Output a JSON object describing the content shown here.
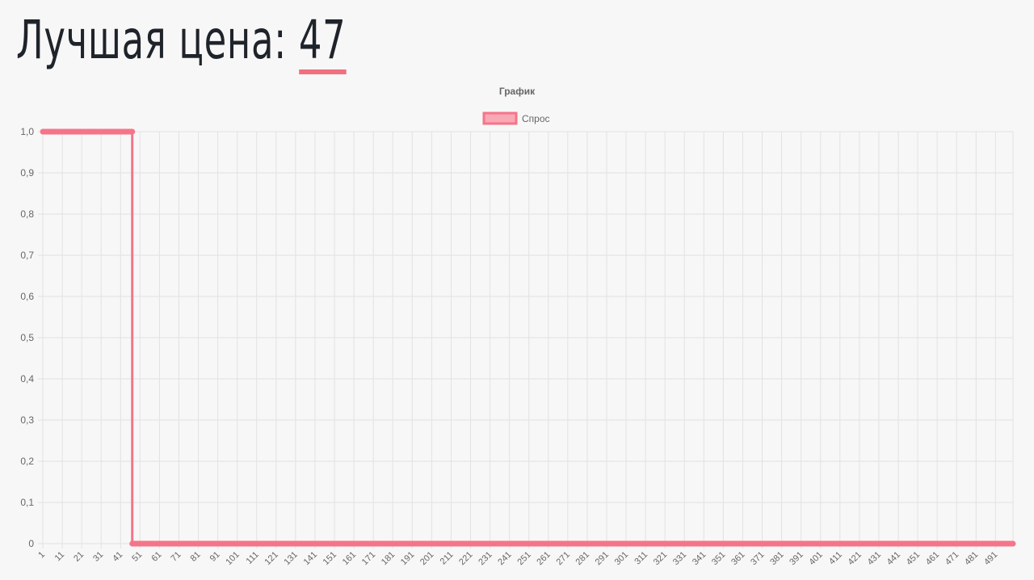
{
  "header": {
    "label": "Лучшая цена:",
    "price": "47"
  },
  "colors": {
    "series": "#f47589",
    "series_fill": "#f9a8b5",
    "grid": "#e2e2e2",
    "text": "#666666",
    "title_text": "#1f232a"
  },
  "chart_data": {
    "type": "line",
    "title": "График",
    "legend": "top-center",
    "grid": true,
    "x_tick_start": 1,
    "x_tick_step": 10,
    "x_last": 500,
    "ylim": [
      0,
      1
    ],
    "y_ticks": [
      "0",
      "0,1",
      "0,2",
      "0,3",
      "0,4",
      "0,5",
      "0,6",
      "0,7",
      "0,8",
      "0,9",
      "1,0"
    ],
    "series": [
      {
        "name": "Спрос",
        "step": true,
        "points": [
          [
            1,
            1
          ],
          [
            47,
            1
          ],
          [
            47,
            0
          ],
          [
            48,
            0
          ],
          [
            500,
            0
          ]
        ]
      }
    ]
  }
}
